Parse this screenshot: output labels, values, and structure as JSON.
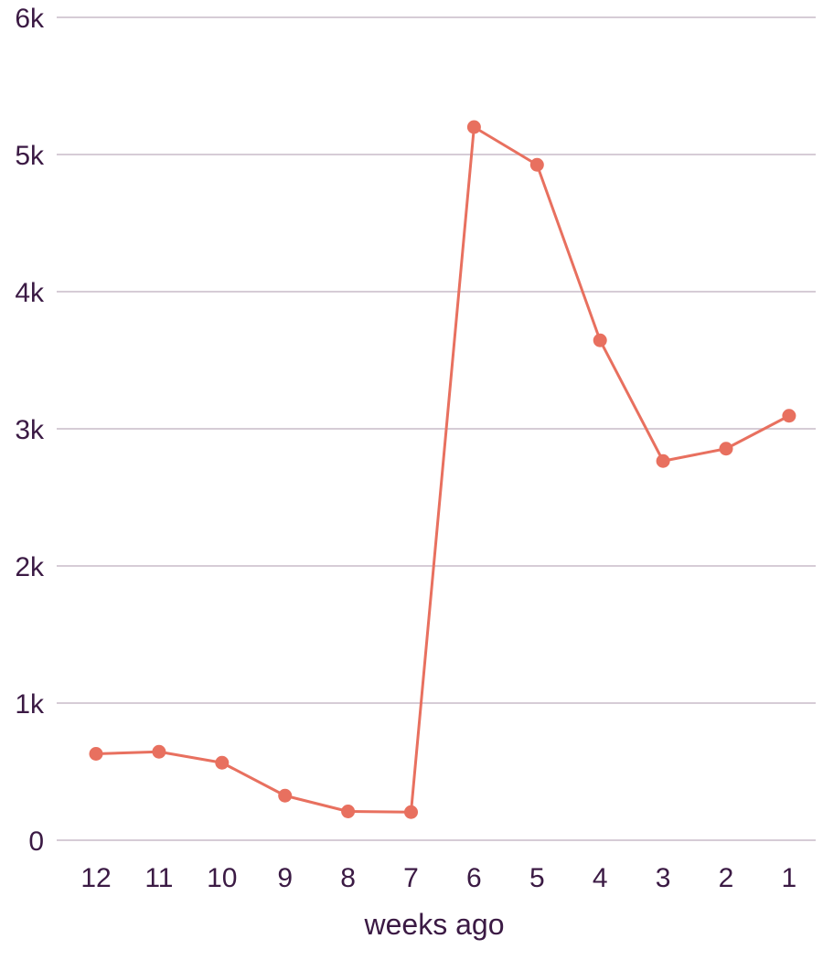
{
  "chart_data": {
    "type": "line",
    "title": "",
    "xlabel": "weeks ago",
    "ylabel": "",
    "categories": [
      "12",
      "11",
      "10",
      "9",
      "8",
      "7",
      "6",
      "5",
      "4",
      "3",
      "2",
      "1"
    ],
    "y_ticks": [
      0,
      1000,
      2000,
      3000,
      4000,
      5000,
      6000
    ],
    "y_tick_labels": [
      "0",
      "1k",
      "2k",
      "3k",
      "4k",
      "5k",
      "6k"
    ],
    "ylim": [
      0,
      6000
    ],
    "grid": true,
    "series": [
      {
        "values": [
          630,
          645,
          565,
          325,
          210,
          205,
          5200,
          4925,
          3645,
          2765,
          2855,
          3095
        ]
      }
    ],
    "colors": {
      "line": "#e8705f",
      "grid": "#d6ccd6",
      "text": "#3b1a44"
    }
  }
}
